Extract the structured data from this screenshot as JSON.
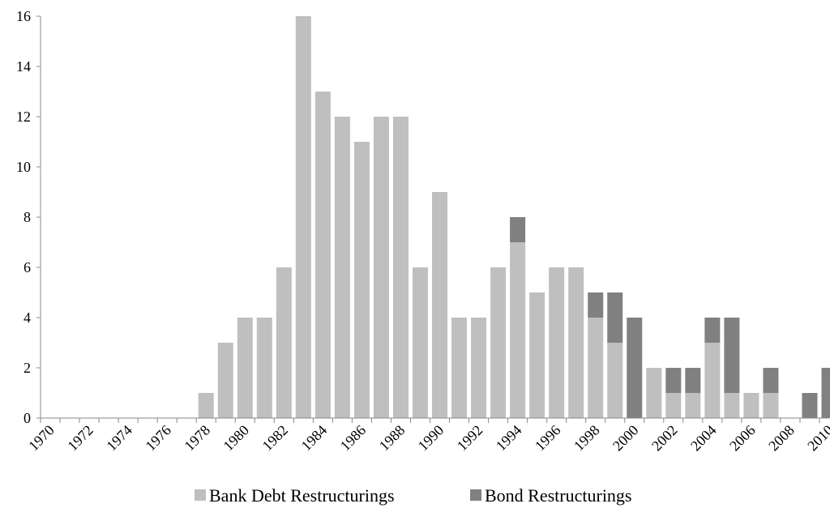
{
  "chart_data": {
    "type": "bar",
    "stacked": true,
    "categories": [
      "1970",
      "1971",
      "1972",
      "1973",
      "1974",
      "1975",
      "1976",
      "1977",
      "1978",
      "1979",
      "1980",
      "1981",
      "1982",
      "1983",
      "1984",
      "1985",
      "1986",
      "1987",
      "1988",
      "1989",
      "1990",
      "1991",
      "1992",
      "1993",
      "1994",
      "1995",
      "1996",
      "1997",
      "1998",
      "1999",
      "2000",
      "2001",
      "2002",
      "2003",
      "2004",
      "2005",
      "2006",
      "2007",
      "2008",
      "2009",
      "2010"
    ],
    "x_tick_labels": [
      "1970",
      "1972",
      "1974",
      "1976",
      "1978",
      "1980",
      "1982",
      "1984",
      "1986",
      "1988",
      "1990",
      "1992",
      "1994",
      "1996",
      "1998",
      "2000",
      "2002",
      "2004",
      "2006",
      "2008",
      "2010"
    ],
    "series": [
      {
        "name": "Bank Debt Restructurings",
        "color": "#bfbfbf",
        "values": [
          0,
          0,
          0,
          0,
          0,
          0,
          0,
          0,
          1,
          3,
          4,
          4,
          6,
          16,
          13,
          12,
          11,
          12,
          12,
          6,
          9,
          4,
          4,
          6,
          7,
          5,
          6,
          6,
          4,
          3,
          0,
          2,
          1,
          1,
          3,
          1,
          1,
          1,
          0,
          0,
          0
        ]
      },
      {
        "name": "Bond Restructurings",
        "color": "#808080",
        "values": [
          0,
          0,
          0,
          0,
          0,
          0,
          0,
          0,
          0,
          0,
          0,
          0,
          0,
          0,
          0,
          0,
          0,
          0,
          0,
          0,
          0,
          0,
          0,
          0,
          1,
          0,
          0,
          0,
          1,
          2,
          4,
          0,
          1,
          1,
          1,
          3,
          0,
          1,
          0,
          1,
          2
        ]
      }
    ],
    "ylim": [
      0,
      16
    ],
    "y_tick_labels": [
      "0",
      "2",
      "4",
      "6",
      "8",
      "10",
      "12",
      "14",
      "16"
    ],
    "title": "",
    "xlabel": "",
    "ylabel": "",
    "grid": false,
    "legend_position": "bottom"
  }
}
